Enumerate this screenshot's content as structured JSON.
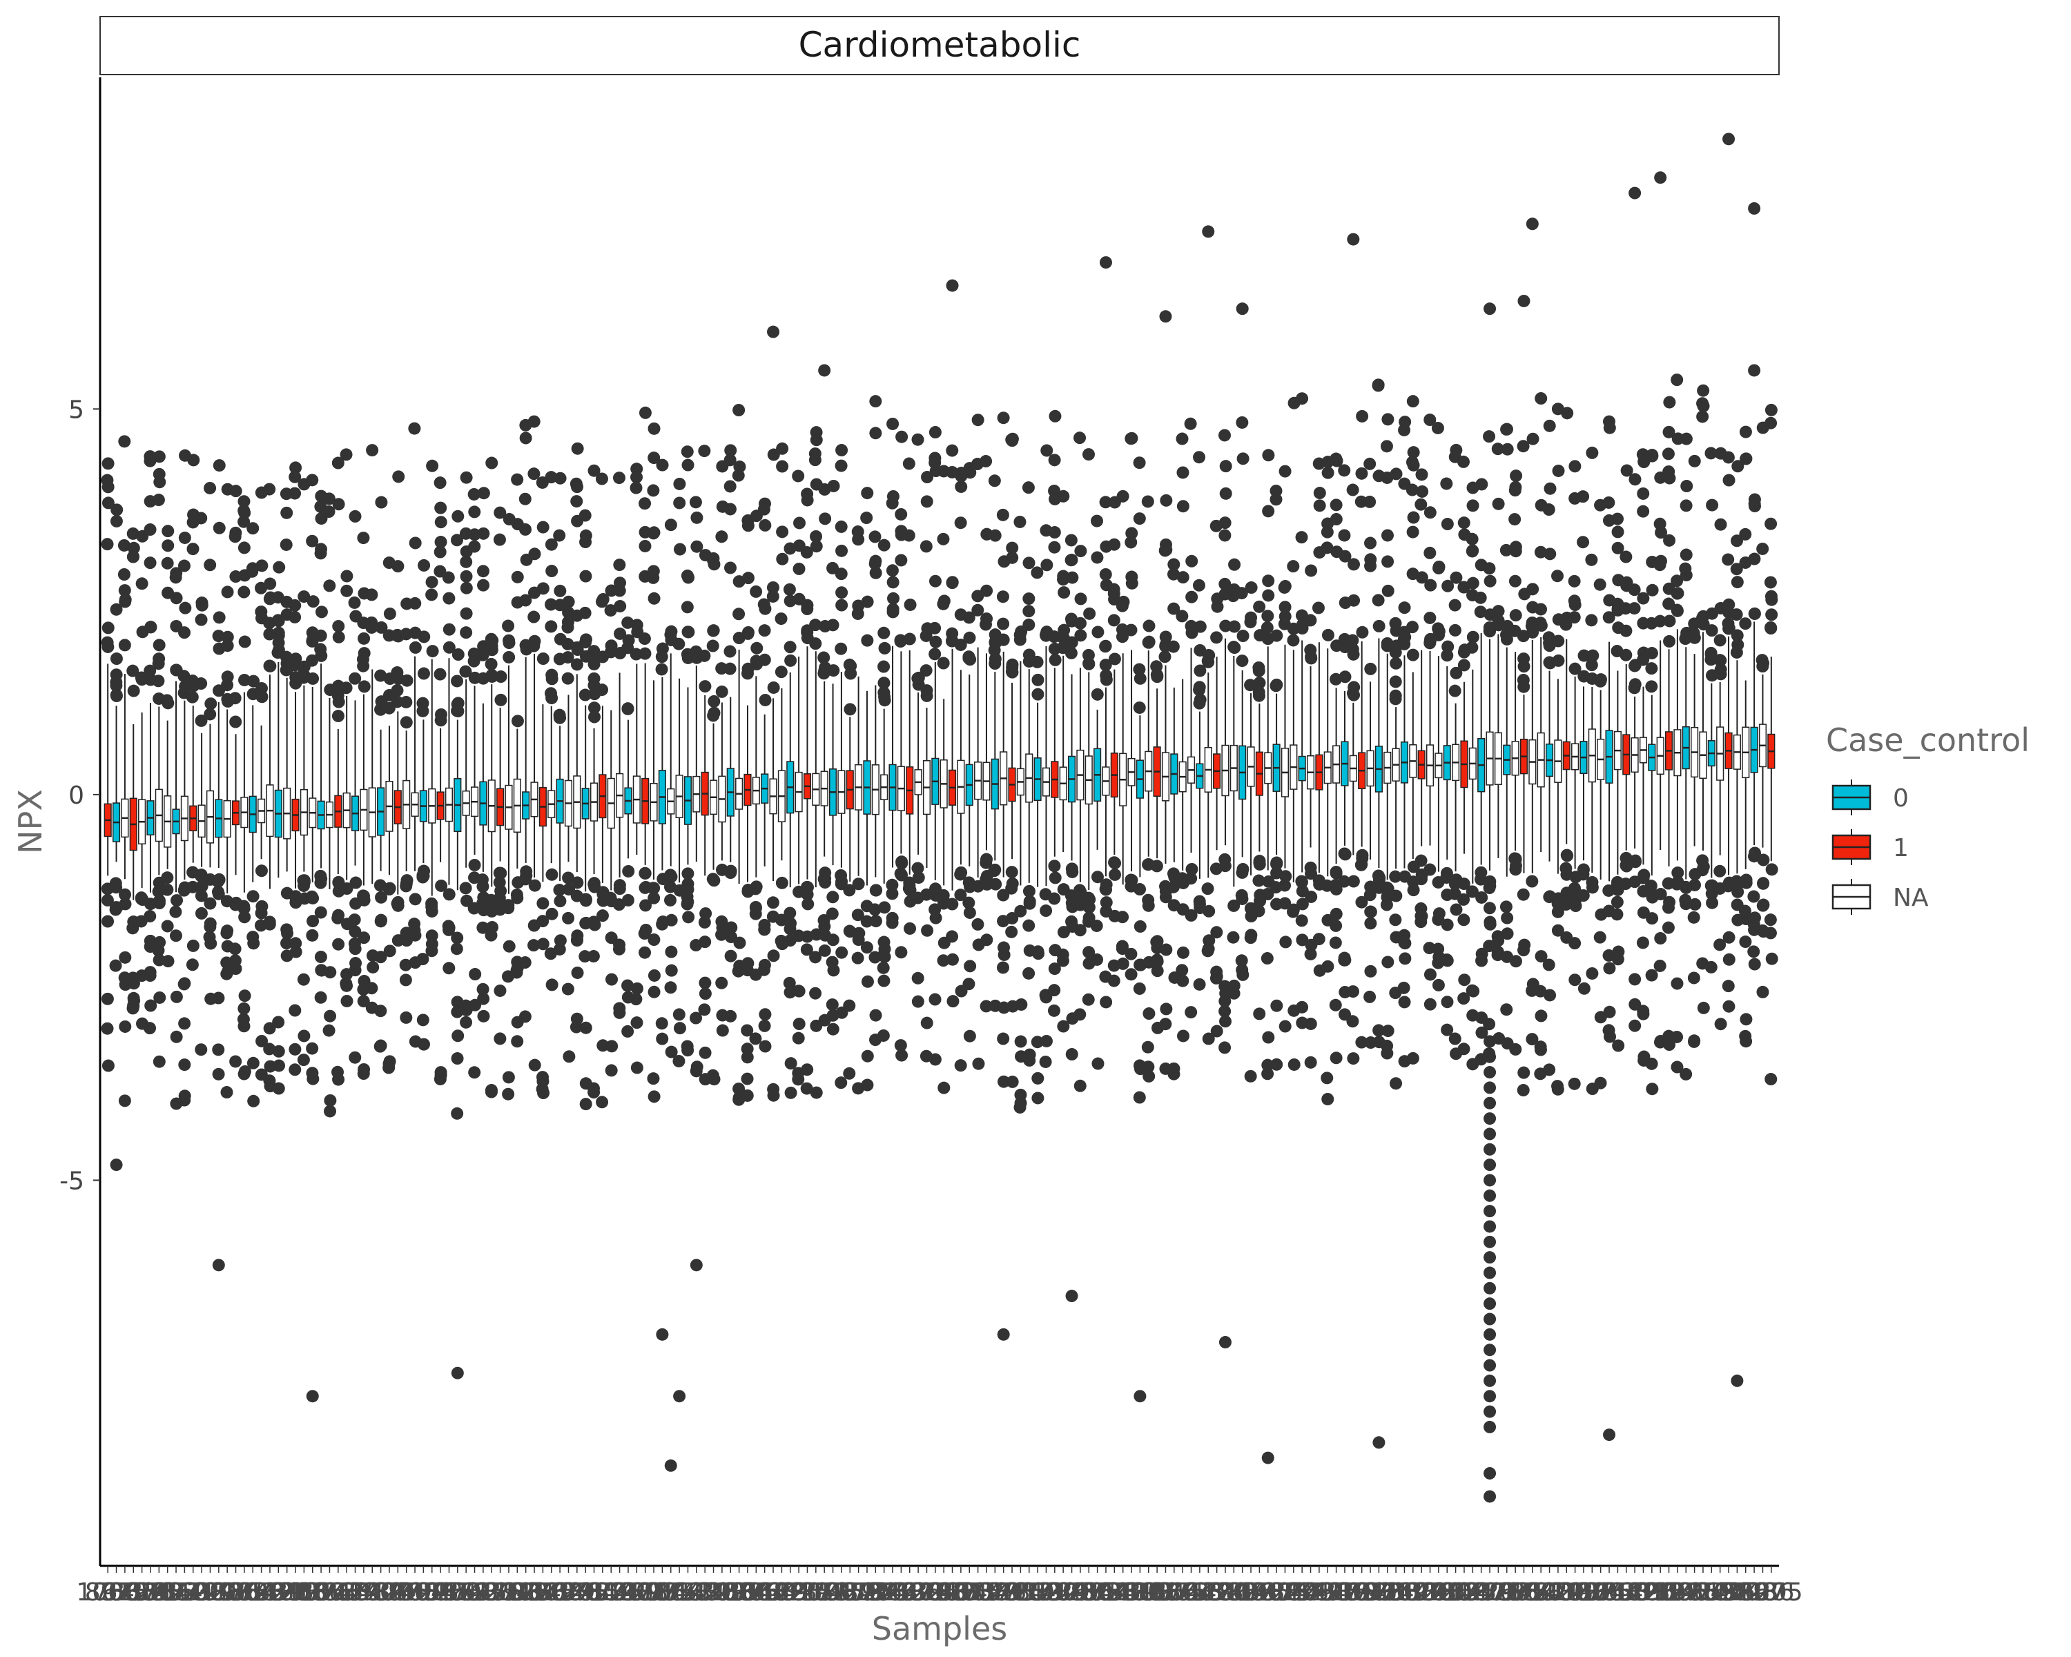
{
  "chart_data": {
    "type": "boxplot",
    "title": "Cardiometabolic",
    "xlabel": "Samples",
    "ylabel": "NPX",
    "ylim": [
      -10.0,
      9.3
    ],
    "yticks": [
      5,
      0,
      -5
    ],
    "ytick_labels": [
      "5",
      "0",
      "-5"
    ],
    "n_samples": 196,
    "legend": {
      "title": "Case_control",
      "placement": "right",
      "entries": [
        {
          "label": "0",
          "color": "#00BCD8"
        },
        {
          "label": "1",
          "color": "#F0240C"
        },
        {
          "label": "NA",
          "color": "#FFFFFF"
        }
      ]
    },
    "box_summary": {
      "median_start": -0.35,
      "median_end": 0.6,
      "iqr_half_width_range": [
        0.15,
        0.35
      ],
      "whisker_low_range": [
        -1.3,
        -0.75
      ],
      "whisker_high_range": [
        0.9,
        1.9
      ]
    },
    "notable_outliers": [
      {
        "sample_index": 1,
        "y": 2.4
      },
      {
        "sample_index": 1,
        "y": -4.8
      },
      {
        "sample_index": 7,
        "y": 3.0
      },
      {
        "sample_index": 13,
        "y": -6.1
      },
      {
        "sample_index": 16,
        "y": 3.2
      },
      {
        "sample_index": 24,
        "y": -7.8
      },
      {
        "sample_index": 27,
        "y": 4.3
      },
      {
        "sample_index": 41,
        "y": -7.5
      },
      {
        "sample_index": 45,
        "y": 4.3
      },
      {
        "sample_index": 57,
        "y": 4.2
      },
      {
        "sample_index": 65,
        "y": -7.0
      },
      {
        "sample_index": 66,
        "y": -8.7
      },
      {
        "sample_index": 67,
        "y": -7.8
      },
      {
        "sample_index": 69,
        "y": -6.1
      },
      {
        "sample_index": 78,
        "y": 6.0
      },
      {
        "sample_index": 84,
        "y": 5.5
      },
      {
        "sample_index": 90,
        "y": 5.1
      },
      {
        "sample_index": 99,
        "y": 6.6
      },
      {
        "sample_index": 105,
        "y": -7.0
      },
      {
        "sample_index": 113,
        "y": -6.5
      },
      {
        "sample_index": 117,
        "y": 6.9
      },
      {
        "sample_index": 121,
        "y": -7.8
      },
      {
        "sample_index": 124,
        "y": 6.2
      },
      {
        "sample_index": 129,
        "y": 7.3
      },
      {
        "sample_index": 131,
        "y": -7.1
      },
      {
        "sample_index": 133,
        "y": 6.3
      },
      {
        "sample_index": 136,
        "y": -8.6
      },
      {
        "sample_index": 146,
        "y": 7.2
      },
      {
        "sample_index": 149,
        "y": -8.4
      },
      {
        "sample_index": 153,
        "y": 5.1
      },
      {
        "sample_index": 162,
        "y": 6.3
      },
      {
        "sample_index": 166,
        "y": 6.4
      },
      {
        "sample_index": 162,
        "y": -9.1
      },
      {
        "sample_index": 162,
        "y": -8.8
      },
      {
        "sample_index": 167,
        "y": 7.4
      },
      {
        "sample_index": 170,
        "y": 5.0
      },
      {
        "sample_index": 176,
        "y": -8.3
      },
      {
        "sample_index": 179,
        "y": 7.8
      },
      {
        "sample_index": 182,
        "y": 8.0
      },
      {
        "sample_index": 183,
        "y": 4.7
      },
      {
        "sample_index": 190,
        "y": 8.5
      },
      {
        "sample_index": 191,
        "y": -7.6
      },
      {
        "sample_index": 193,
        "y": 7.6
      },
      {
        "sample_index": 193,
        "y": 5.5
      }
    ]
  }
}
